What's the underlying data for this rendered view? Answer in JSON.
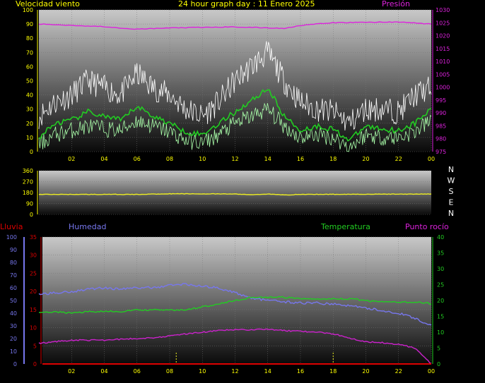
{
  "chart_data": [
    {
      "type": "line",
      "title": "24 hour graph day : 11 Enero 2025",
      "left_label": "Velocidad viento",
      "right_label": "Presión",
      "x_ticks": [
        "02",
        "04",
        "06",
        "08",
        "10",
        "12",
        "14",
        "16",
        "18",
        "20",
        "22",
        "00"
      ],
      "x_range": [
        0,
        24
      ],
      "ylim": [
        0,
        100
      ],
      "y_ticks": [
        "0",
        "10",
        "20",
        "30",
        "40",
        "50",
        "60",
        "70",
        "80",
        "90",
        "100"
      ],
      "y2lim": [
        975,
        1030
      ],
      "y2_ticks": [
        "975",
        "980",
        "985",
        "990",
        "995",
        "1000",
        "1005",
        "1010",
        "1015",
        "1020",
        "1025",
        "1030"
      ],
      "colors": {
        "gust": "#ffffff",
        "average": "#22cc22",
        "wind": "#aaffaa",
        "pressure": "#dd22dd"
      },
      "series": [
        {
          "key": "gust",
          "x": [
            0,
            1,
            2,
            3,
            4,
            5,
            6,
            7,
            8,
            9,
            10,
            11,
            12,
            13,
            14,
            15,
            16,
            17,
            18,
            19,
            20,
            21,
            22,
            23,
            24
          ],
          "values": [
            25,
            35,
            40,
            50,
            45,
            40,
            55,
            45,
            40,
            30,
            25,
            35,
            50,
            60,
            70,
            50,
            35,
            30,
            28,
            20,
            30,
            30,
            28,
            40,
            45
          ]
        },
        {
          "key": "average",
          "x": [
            0,
            1,
            2,
            3,
            4,
            5,
            6,
            7,
            8,
            9,
            10,
            11,
            12,
            13,
            14,
            15,
            16,
            17,
            18,
            19,
            20,
            21,
            22,
            23,
            24
          ],
          "values": [
            10,
            20,
            22,
            28,
            25,
            22,
            32,
            25,
            20,
            14,
            12,
            20,
            28,
            36,
            45,
            25,
            15,
            18,
            16,
            8,
            18,
            16,
            15,
            20,
            30
          ]
        },
        {
          "key": "wind",
          "x": [
            0,
            1,
            2,
            3,
            4,
            5,
            6,
            7,
            8,
            9,
            10,
            11,
            12,
            13,
            14,
            15,
            16,
            17,
            18,
            19,
            20,
            21,
            22,
            23,
            24
          ],
          "values": [
            5,
            12,
            15,
            18,
            16,
            15,
            22,
            18,
            14,
            8,
            6,
            12,
            20,
            25,
            30,
            18,
            10,
            12,
            10,
            3,
            12,
            10,
            10,
            14,
            22
          ]
        },
        {
          "key": "pressure",
          "axis": "y2",
          "x": [
            0,
            2,
            4,
            6,
            8,
            10,
            12,
            14,
            15,
            16,
            17,
            18,
            20,
            22,
            24
          ],
          "values": [
            1024.5,
            1024,
            1023.5,
            1022.5,
            1023,
            1023.2,
            1023.4,
            1023,
            1022.8,
            1024,
            1024.5,
            1025,
            1025.2,
            1025.3,
            1024.5
          ]
        }
      ]
    },
    {
      "type": "line",
      "left_label": "",
      "x_range": [
        0,
        24
      ],
      "ylim": [
        0,
        360
      ],
      "y_ticks": [
        "0",
        "90",
        "180",
        "270",
        "360"
      ],
      "compass": [
        "N",
        "W",
        "S",
        "E",
        "N"
      ],
      "color": "#eeee22",
      "series": [
        {
          "key": "direction",
          "x": [
            0,
            6,
            8,
            12,
            13,
            14,
            15,
            16,
            24
          ],
          "values": [
            165,
            165,
            170,
            168,
            162,
            168,
            160,
            165,
            168
          ]
        }
      ]
    },
    {
      "type": "line",
      "left_label": "Lluvia",
      "left2_label": "Humedad",
      "right_label": "Temperatura",
      "right2_label": "Punto rocío",
      "x_ticks": [
        "02",
        "04",
        "06",
        "08",
        "10",
        "12",
        "14",
        "16",
        "18",
        "20",
        "22",
        "00"
      ],
      "x_range": [
        0,
        24
      ],
      "rain_ticks": [
        "0",
        "5",
        "10",
        "15",
        "20",
        "25",
        "30",
        "35"
      ],
      "rain_lim": [
        0,
        35
      ],
      "hum_ticks": [
        "0",
        "10",
        "20",
        "30",
        "40",
        "50",
        "60",
        "70",
        "80",
        "90",
        "100"
      ],
      "hum_lim": [
        0,
        100
      ],
      "temp_ticks": [
        "0",
        "5",
        "10",
        "15",
        "20",
        "25",
        "30",
        "35",
        "40"
      ],
      "temp_lim": [
        0,
        40
      ],
      "colors": {
        "humidity": "#7777ee",
        "temperature": "#22cc22",
        "dewpoint": "#cc22cc",
        "rain": "#dd0000",
        "marker": "#eeee22"
      },
      "series": [
        {
          "key": "humidity",
          "axis": "hum",
          "x": [
            0,
            1,
            2,
            3,
            4,
            5,
            6,
            7,
            8,
            9,
            10,
            11,
            12,
            13,
            14,
            15,
            16,
            17,
            18,
            19,
            20,
            21,
            22,
            23,
            24
          ],
          "values": [
            55,
            56,
            57,
            59,
            60,
            59,
            60,
            60,
            62,
            63,
            61,
            60,
            56,
            52,
            50,
            49,
            48,
            48,
            47,
            46,
            44,
            42,
            40,
            36,
            30
          ]
        },
        {
          "key": "temperature",
          "axis": "temp",
          "x": [
            0,
            1,
            2,
            3,
            4,
            5,
            6,
            7,
            8,
            9,
            10,
            11,
            12,
            13,
            14,
            15,
            16,
            17,
            18,
            19,
            20,
            21,
            22,
            23,
            24
          ],
          "values": [
            16,
            16.5,
            16,
            16.5,
            16.5,
            16.5,
            17,
            17,
            17,
            17,
            18,
            19,
            20,
            21,
            21,
            21,
            20.5,
            20.5,
            20.5,
            20.5,
            20,
            19.5,
            19.5,
            19.5,
            19
          ]
        },
        {
          "key": "dewpoint",
          "axis": "temp",
          "x": [
            0,
            1,
            2,
            3,
            4,
            5,
            6,
            7,
            8,
            9,
            10,
            11,
            12,
            13,
            14,
            15,
            16,
            17,
            18,
            19,
            20,
            21,
            22,
            23,
            23.5,
            24
          ],
          "values": [
            6.5,
            7,
            7.5,
            7.5,
            7.5,
            7.8,
            8,
            8.3,
            8.8,
            9.5,
            10,
            10.5,
            10.8,
            10.8,
            11,
            10.5,
            10.3,
            10,
            9.5,
            8.2,
            7,
            6.7,
            6.2,
            5,
            2.5,
            0
          ]
        },
        {
          "key": "rain",
          "axis": "rain",
          "x": [
            0,
            24
          ],
          "values": [
            0,
            0
          ]
        }
      ]
    }
  ]
}
